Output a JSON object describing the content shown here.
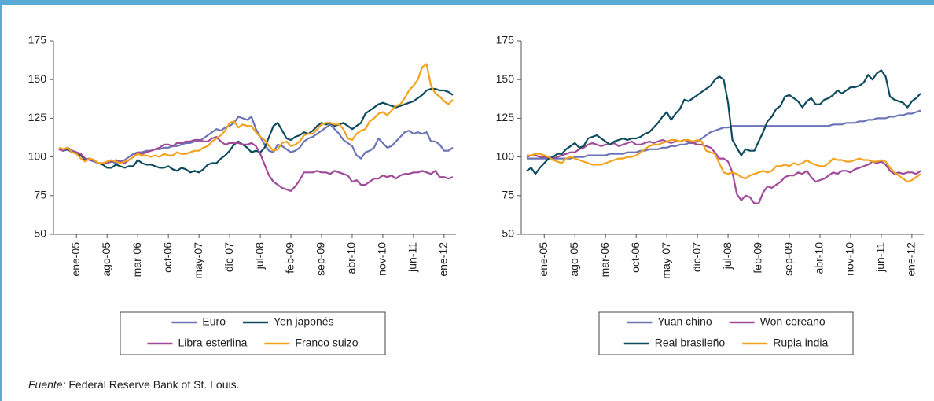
{
  "chart_data": [
    {
      "type": "line",
      "grid": false,
      "legend": "bottom",
      "ylim": [
        50,
        175
      ],
      "yticks": [
        50,
        75,
        100,
        125,
        150,
        175
      ],
      "categories": [
        null,
        null,
        null,
        null,
        "ene-05",
        null,
        null,
        null,
        null,
        null,
        null,
        "ago-05",
        null,
        null,
        null,
        null,
        null,
        null,
        "mar-06",
        null,
        null,
        null,
        null,
        null,
        null,
        "oct-06",
        null,
        null,
        null,
        null,
        null,
        null,
        "may-07",
        null,
        null,
        null,
        null,
        null,
        null,
        "dic-07",
        null,
        null,
        null,
        null,
        null,
        null,
        "jul-08",
        null,
        null,
        null,
        null,
        null,
        null,
        "feb-09",
        null,
        null,
        null,
        null,
        null,
        null,
        "sep-09",
        null,
        null,
        null,
        null,
        null,
        null,
        "abr-10",
        null,
        null,
        null,
        null,
        null,
        null,
        "nov-10",
        null,
        null,
        null,
        null,
        null,
        null,
        "jun-11",
        null,
        null,
        null,
        null,
        null,
        null,
        "ene-12",
        null,
        null
      ],
      "series": [
        {
          "name": "Euro",
          "color": "#6b74b4",
          "values": [
            105,
            104,
            106,
            104,
            103,
            101,
            99,
            98,
            97,
            96,
            96,
            96,
            97,
            96,
            97,
            98,
            100,
            102,
            103,
            103,
            104,
            104,
            105,
            105,
            106,
            106,
            107,
            107,
            108,
            109,
            109,
            110,
            110,
            112,
            114,
            116,
            118,
            117,
            119,
            120,
            122,
            126,
            125,
            124,
            126,
            118,
            113,
            108,
            104,
            103,
            108,
            107,
            105,
            103,
            104,
            106,
            110,
            112,
            113,
            115,
            117,
            119,
            121,
            118,
            115,
            111,
            109,
            107,
            101,
            99,
            103,
            104,
            106,
            112,
            109,
            106,
            107,
            110,
            113,
            116,
            117,
            115,
            116,
            115,
            116,
            110,
            110,
            108,
            104,
            104,
            106
          ]
        },
        {
          "name": "Yen japonés",
          "color": "#0d4b5e",
          "values": [
            105,
            104,
            105,
            103,
            103,
            101,
            98,
            99,
            98,
            96,
            95,
            93,
            93,
            95,
            94,
            93,
            94,
            94,
            98,
            96,
            95,
            95,
            94,
            93,
            93,
            94,
            92,
            91,
            93,
            92,
            90,
            91,
            90,
            92,
            95,
            96,
            96,
            99,
            101,
            104,
            108,
            110,
            108,
            106,
            103,
            104,
            103,
            106,
            113,
            120,
            122,
            117,
            112,
            111,
            113,
            114,
            116,
            115,
            117,
            120,
            122,
            121,
            122,
            120,
            121,
            122,
            120,
            118,
            120,
            122,
            128,
            130,
            132,
            134,
            135,
            134,
            133,
            132,
            133,
            134,
            135,
            136,
            138,
            140,
            143,
            144,
            144,
            143,
            143,
            142,
            140
          ]
        },
        {
          "name": "Libra esterlina",
          "color": "#a04a9a",
          "values": [
            105,
            104,
            106,
            104,
            103,
            102,
            99,
            98,
            98,
            96,
            96,
            96,
            97,
            98,
            97,
            96,
            98,
            100,
            103,
            102,
            103,
            104,
            105,
            106,
            108,
            108,
            107,
            109,
            109,
            110,
            110,
            111,
            111,
            110,
            110,
            112,
            113,
            110,
            108,
            109,
            109,
            109,
            108,
            108,
            109,
            107,
            102,
            95,
            88,
            84,
            82,
            80,
            79,
            78,
            81,
            85,
            90,
            90,
            90,
            91,
            90,
            90,
            89,
            91,
            90,
            89,
            88,
            84,
            85,
            82,
            82,
            84,
            86,
            86,
            88,
            87,
            88,
            86,
            88,
            89,
            89,
            90,
            90,
            91,
            90,
            89,
            91,
            87,
            87,
            86,
            87
          ]
        },
        {
          "name": "Franco suizo",
          "color": "#f3a21d",
          "values": [
            106,
            105,
            106,
            103,
            102,
            99,
            97,
            99,
            98,
            96,
            96,
            97,
            98,
            97,
            96,
            97,
            98,
            100,
            102,
            101,
            101,
            100,
            101,
            100,
            102,
            101,
            101,
            103,
            102,
            102,
            103,
            104,
            104,
            106,
            107,
            110,
            112,
            114,
            117,
            122,
            123,
            119,
            121,
            120,
            120,
            116,
            113,
            111,
            107,
            104,
            105,
            109,
            110,
            107,
            108,
            110,
            114,
            115,
            115,
            118,
            121,
            122,
            122,
            121,
            121,
            118,
            112,
            111,
            115,
            117,
            118,
            123,
            125,
            128,
            129,
            127,
            130,
            133,
            134,
            138,
            143,
            146,
            150,
            158,
            160,
            146,
            141,
            139,
            136,
            134,
            137
          ]
        }
      ]
    },
    {
      "type": "line",
      "grid": false,
      "legend": "bottom",
      "ylim": [
        50,
        175
      ],
      "yticks": [
        50,
        75,
        100,
        125,
        150,
        175
      ],
      "categories": [
        null,
        null,
        null,
        null,
        "ene-05",
        null,
        null,
        null,
        null,
        null,
        null,
        "ago-05",
        null,
        null,
        null,
        null,
        null,
        null,
        "mar-06",
        null,
        null,
        null,
        null,
        null,
        null,
        "oct-06",
        null,
        null,
        null,
        null,
        null,
        null,
        "may-07",
        null,
        null,
        null,
        null,
        null,
        null,
        "dic-07",
        null,
        null,
        null,
        null,
        null,
        null,
        "jul-08",
        null,
        null,
        null,
        null,
        null,
        null,
        "feb-09",
        null,
        null,
        null,
        null,
        null,
        null,
        "sep-09",
        null,
        null,
        null,
        null,
        null,
        null,
        "abr-10",
        null,
        null,
        null,
        null,
        null,
        null,
        "nov-10",
        null,
        null,
        null,
        null,
        null,
        null,
        "jun-11",
        null,
        null,
        null,
        null,
        null,
        null,
        "ene-12",
        null,
        null
      ],
      "series": [
        {
          "name": "Yuan chino",
          "color": "#6b74b4",
          "values": [
            99,
            99,
            99,
            99,
            99,
            99,
            99,
            99,
            99,
            99,
            99,
            100,
            100,
            100,
            101,
            101,
            101,
            101,
            101,
            102,
            102,
            102,
            102,
            103,
            103,
            103,
            104,
            104,
            105,
            105,
            105,
            106,
            106,
            107,
            107,
            108,
            108,
            109,
            109,
            110,
            112,
            114,
            116,
            117,
            118,
            119,
            119,
            120,
            120,
            120,
            120,
            120,
            120,
            120,
            120,
            120,
            120,
            120,
            120,
            120,
            120,
            120,
            120,
            120,
            120,
            120,
            120,
            120,
            120,
            120,
            121,
            121,
            121,
            122,
            122,
            122,
            123,
            123,
            124,
            124,
            125,
            125,
            125,
            126,
            126,
            127,
            127,
            128,
            128,
            129,
            130
          ]
        },
        {
          "name": "Won coreano",
          "color": "#a04a9a",
          "values": [
            100,
            101,
            101,
            100,
            100,
            100,
            99,
            100,
            101,
            102,
            103,
            103,
            105,
            106,
            108,
            109,
            108,
            107,
            108,
            108,
            109,
            107,
            108,
            109,
            110,
            108,
            108,
            109,
            110,
            109,
            110,
            111,
            110,
            109,
            110,
            110,
            111,
            110,
            109,
            108,
            108,
            107,
            106,
            103,
            99,
            99,
            97,
            90,
            76,
            72,
            75,
            74,
            70,
            70,
            77,
            81,
            80,
            82,
            84,
            87,
            88,
            88,
            90,
            89,
            91,
            87,
            84,
            85,
            86,
            88,
            90,
            89,
            91,
            91,
            90,
            92,
            93,
            94,
            95,
            97,
            96,
            97,
            95,
            91,
            89,
            90,
            89,
            90,
            90,
            89,
            91
          ]
        },
        {
          "name": "Real brasileño",
          "color": "#0d4b5e",
          "values": [
            91,
            93,
            89,
            93,
            96,
            99,
            100,
            102,
            102,
            105,
            107,
            109,
            106,
            107,
            112,
            113,
            114,
            112,
            110,
            108,
            110,
            111,
            112,
            111,
            112,
            112,
            113,
            115,
            116,
            119,
            122,
            126,
            129,
            124,
            128,
            131,
            137,
            136,
            138,
            140,
            142,
            144,
            146,
            150,
            152,
            150,
            135,
            111,
            106,
            101,
            105,
            104,
            104,
            110,
            116,
            123,
            126,
            131,
            133,
            139,
            140,
            138,
            136,
            132,
            136,
            138,
            134,
            134,
            137,
            138,
            140,
            143,
            141,
            143,
            145,
            145,
            146,
            148,
            153,
            150,
            154,
            156,
            152,
            139,
            137,
            136,
            135,
            132,
            136,
            138,
            141
          ]
        },
        {
          "name": "Rupia india",
          "color": "#f3a21d",
          "values": [
            101,
            101,
            102,
            102,
            101,
            100,
            98,
            97,
            96,
            99,
            100,
            99,
            98,
            97,
            96,
            95,
            95,
            95,
            96,
            97,
            98,
            99,
            99,
            100,
            100,
            101,
            103,
            105,
            107,
            108,
            108,
            109,
            110,
            111,
            111,
            110,
            111,
            111,
            110,
            111,
            110,
            104,
            103,
            102,
            96,
            90,
            89,
            90,
            89,
            87,
            86,
            88,
            89,
            90,
            91,
            90,
            91,
            94,
            94,
            95,
            94,
            96,
            95,
            96,
            98,
            96,
            95,
            94,
            94,
            96,
            99,
            98,
            98,
            97,
            97,
            98,
            99,
            98,
            98,
            97,
            97,
            98,
            97,
            93,
            90,
            88,
            86,
            84,
            85,
            87,
            89
          ]
        }
      ]
    }
  ],
  "source": {
    "label": "Fuente:",
    "text": "Federal Reserve Bank of St. Louis."
  }
}
